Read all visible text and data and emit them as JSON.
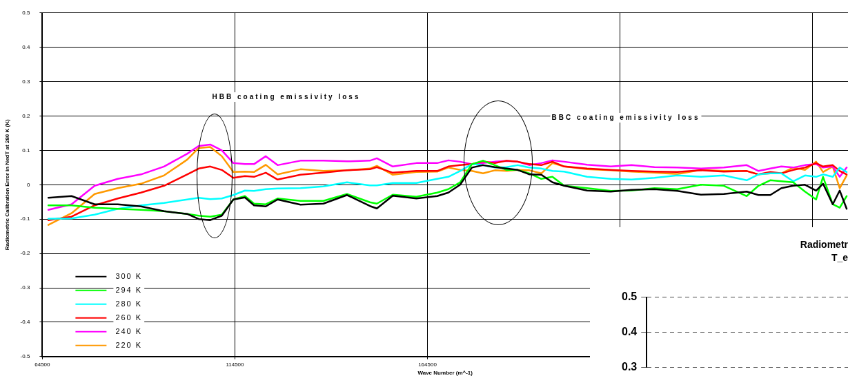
{
  "chart_data": [
    {
      "type": "line",
      "xlabel": "Wave Number (m^-1)",
      "ylabel": "Radiometric Calibration Error in NedT at 280 K (K)",
      "x": [
        66060,
        72070,
        78080,
        84090,
        90100,
        96100,
        102100,
        105100,
        108100,
        111100,
        114100,
        117100,
        119460,
        122520,
        125590,
        131530,
        137480,
        143610,
        149550,
        151360,
        155500,
        161630,
        167030,
        169920,
        172980,
        176040,
        178930,
        181990,
        185050,
        187940,
        191000,
        194060,
        196950,
        200010,
        205960,
        212080,
        217490,
        223440,
        229380,
        235510,
        241450,
        247400,
        250460,
        253520,
        256400,
        259470,
        262530,
        265420,
        267220,
        269740,
        271550,
        273350
      ],
      "series": [
        {
          "name": "300 K",
          "color": "#000000",
          "values": [
            -0.038,
            -0.033,
            -0.057,
            -0.057,
            -0.063,
            -0.077,
            -0.085,
            -0.1,
            -0.103,
            -0.09,
            -0.043,
            -0.037,
            -0.06,
            -0.063,
            -0.043,
            -0.058,
            -0.055,
            -0.03,
            -0.062,
            -0.069,
            -0.032,
            -0.04,
            -0.033,
            -0.023,
            0,
            0.05,
            0.057,
            0.051,
            0.047,
            0.043,
            0.03,
            0.029,
            0.007,
            -0.003,
            -0.017,
            -0.02,
            -0.015,
            -0.013,
            -0.018,
            -0.029,
            -0.027,
            -0.02,
            -0.03,
            -0.03,
            -0.01,
            -0.003,
            0,
            -0.017,
            0.003,
            -0.057,
            -0.017,
            -0.07
          ]
        },
        {
          "name": "294 K",
          "color": "#00ff00",
          "values": [
            -0.06,
            -0.06,
            -0.067,
            -0.07,
            -0.073,
            -0.077,
            -0.085,
            -0.09,
            -0.093,
            -0.087,
            -0.043,
            -0.033,
            -0.055,
            -0.057,
            -0.04,
            -0.047,
            -0.047,
            -0.027,
            -0.051,
            -0.055,
            -0.029,
            -0.035,
            -0.023,
            -0.013,
            0.007,
            0.06,
            0.07,
            0.057,
            0.043,
            0.043,
            0.033,
            0.017,
            0.023,
            -0.003,
            -0.01,
            -0.018,
            -0.017,
            -0.01,
            -0.013,
            0,
            -0.003,
            -0.033,
            -0.003,
            0.013,
            0.01,
            0.007,
            -0.02,
            -0.043,
            0.023,
            -0.057,
            -0.067,
            -0.033
          ]
        },
        {
          "name": "280 K",
          "color": "#00ffff",
          "values": [
            -0.099,
            -0.098,
            -0.087,
            -0.07,
            -0.06,
            -0.053,
            -0.043,
            -0.038,
            -0.042,
            -0.04,
            -0.03,
            -0.017,
            -0.018,
            -0.013,
            -0.011,
            -0.01,
            -0.005,
            0.007,
            -0.002,
            -0.002,
            0.005,
            0.005,
            0.017,
            0.023,
            0.04,
            0.06,
            0.057,
            0.05,
            0.051,
            0.057,
            0.05,
            0.047,
            0.04,
            0.038,
            0.023,
            0.017,
            0.015,
            0.02,
            0.027,
            0.023,
            0.027,
            0.013,
            0.03,
            0.033,
            0.033,
            0.01,
            0.027,
            0.023,
            0.03,
            0.023,
            0.05,
            0.037
          ]
        },
        {
          "name": "260 K",
          "color": "#ff0000",
          "values": [
            -0.103,
            -0.093,
            -0.06,
            -0.04,
            -0.023,
            -0.003,
            0.03,
            0.047,
            0.053,
            0.043,
            0.02,
            0.025,
            0.023,
            0.035,
            0.015,
            0.029,
            0.035,
            0.042,
            0.045,
            0.051,
            0.035,
            0.04,
            0.04,
            0.053,
            0.057,
            0.06,
            0.068,
            0.063,
            0.07,
            0.067,
            0.06,
            0.057,
            0.067,
            0.053,
            0.047,
            0.043,
            0.04,
            0.038,
            0.037,
            0.042,
            0.038,
            0.04,
            0.03,
            0.037,
            0.033,
            0.043,
            0.05,
            0.063,
            0.053,
            0.057,
            0.04,
            0.03
          ]
        },
        {
          "name": "240 K",
          "color": "#ff00ff",
          "values": [
            -0.073,
            -0.057,
            -0.003,
            0.017,
            0.03,
            0.053,
            0.09,
            0.113,
            0.117,
            0.1,
            0.063,
            0.06,
            0.06,
            0.083,
            0.057,
            0.07,
            0.07,
            0.068,
            0.07,
            0.077,
            0.053,
            0.063,
            0.063,
            0.071,
            0.067,
            0.06,
            0.063,
            0.067,
            0.069,
            0.067,
            0.057,
            0.063,
            0.071,
            0.067,
            0.058,
            0.053,
            0.057,
            0.051,
            0.05,
            0.047,
            0.05,
            0.057,
            0.04,
            0.047,
            0.053,
            0.05,
            0.057,
            0.06,
            0.05,
            0.053,
            0.023,
            0.05
          ]
        },
        {
          "name": "220 K",
          "color": "#ff9900",
          "values": [
            -0.117,
            -0.083,
            -0.027,
            -0.01,
            0.003,
            0.027,
            0.073,
            0.107,
            0.11,
            0.083,
            0.037,
            0.038,
            0.037,
            0.058,
            0.03,
            0.045,
            0.04,
            0.042,
            0.047,
            0.055,
            0.029,
            0.037,
            0.038,
            0.05,
            0.043,
            0.04,
            0.033,
            0.042,
            0.04,
            0.043,
            0.042,
            0.033,
            0.063,
            0.053,
            0.045,
            0.042,
            0.038,
            0.035,
            0.031,
            0.043,
            0.04,
            0.04,
            0.03,
            0.033,
            0.033,
            0.05,
            0.043,
            0.067,
            0.037,
            0.053,
            -0.01,
            0.027
          ]
        }
      ],
      "xlim": [
        64500,
        273700
      ],
      "xticks": [
        64500,
        114500,
        164500,
        {
          "value": 214500,
          "label": null
        },
        {
          "value": 264500,
          "label": null
        }
      ],
      "ylim": [
        -0.5,
        0.5
      ],
      "yticks": [
        -0.5,
        -0.4,
        -0.3,
        -0.2,
        -0.1,
        0,
        0.1,
        0.2,
        0.3,
        0.4,
        0.5
      ],
      "grid": true,
      "legend": "bottom left",
      "marker": "none",
      "line_style": "solid",
      "annotations": [
        "HBB coating emissivity loss",
        "BBC coating emissivity loss"
      ]
    },
    {
      "type": "line",
      "title": "Radiometr",
      "subtitle": "T_e",
      "categories": [
        null
      ],
      "ylim": [
        0.3,
        0.5
      ],
      "yticks": [
        0.3,
        0.4,
        0.5
      ],
      "grid": "y",
      "tick_labels": "y"
    }
  ]
}
